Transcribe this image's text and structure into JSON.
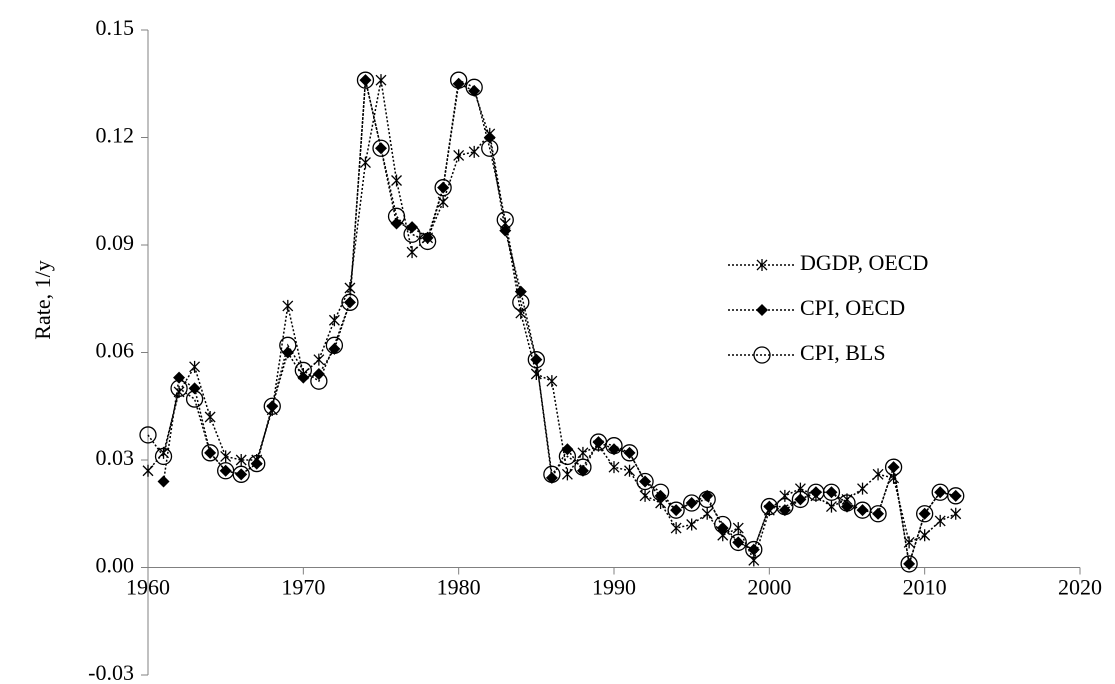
{
  "chart_data": {
    "type": "line",
    "y_label": "Rate, 1/y",
    "x": [
      1960,
      1961,
      1962,
      1963,
      1964,
      1965,
      1966,
      1967,
      1968,
      1969,
      1970,
      1971,
      1972,
      1973,
      1974,
      1975,
      1976,
      1977,
      1978,
      1979,
      1980,
      1981,
      1982,
      1983,
      1984,
      1985,
      1986,
      1987,
      1988,
      1989,
      1990,
      1991,
      1992,
      1993,
      1994,
      1995,
      1996,
      1997,
      1998,
      1999,
      2000,
      2001,
      2002,
      2003,
      2004,
      2005,
      2006,
      2007,
      2008,
      2009,
      2010,
      2011,
      2012
    ],
    "series": [
      {
        "name": "DGDP, OECD",
        "color": "#000000",
        "marker": "asterisk",
        "values": [
          0.027,
          0.032,
          0.049,
          0.056,
          0.042,
          0.031,
          0.03,
          0.03,
          0.044,
          0.073,
          0.054,
          0.058,
          0.069,
          0.078,
          0.113,
          0.136,
          0.108,
          0.088,
          0.092,
          0.102,
          0.115,
          0.116,
          0.121,
          0.096,
          0.071,
          0.054,
          0.052,
          0.026,
          0.032,
          0.034,
          0.028,
          0.027,
          0.02,
          0.018,
          0.011,
          0.012,
          0.015,
          0.009,
          0.011,
          0.002,
          0.016,
          0.02,
          0.022,
          0.02,
          0.017,
          0.019,
          0.022,
          0.026,
          0.025,
          0.007,
          0.009,
          0.013,
          0.015
        ]
      },
      {
        "name": "CPI, OECD",
        "color": "#000000",
        "marker": "diamond",
        "values": [
          null,
          0.024,
          0.053,
          0.05,
          0.032,
          0.027,
          0.026,
          0.029,
          0.045,
          0.06,
          0.053,
          0.054,
          0.061,
          0.074,
          0.136,
          0.117,
          0.096,
          0.095,
          0.092,
          0.106,
          0.135,
          0.133,
          0.12,
          0.094,
          0.077,
          0.058,
          0.025,
          0.033,
          0.027,
          0.035,
          0.033,
          0.032,
          0.024,
          0.02,
          0.016,
          0.018,
          0.02,
          0.011,
          0.007,
          0.005,
          0.017,
          0.016,
          0.019,
          0.021,
          0.021,
          0.017,
          0.016,
          0.015,
          0.028,
          0.001,
          0.015,
          0.021,
          0.02
        ]
      },
      {
        "name": "CPI, BLS",
        "color": "#000000",
        "marker": "circle",
        "values": [
          0.037,
          0.031,
          0.05,
          0.047,
          0.032,
          0.027,
          0.026,
          0.029,
          0.045,
          0.062,
          0.055,
          0.052,
          0.062,
          0.074,
          0.136,
          0.117,
          0.098,
          0.093,
          0.091,
          0.106,
          0.136,
          0.134,
          0.117,
          0.097,
          0.074,
          0.058,
          0.026,
          0.031,
          0.028,
          0.035,
          0.034,
          0.032,
          0.024,
          0.021,
          0.016,
          0.018,
          0.019,
          0.012,
          0.007,
          0.005,
          0.017,
          0.017,
          0.019,
          0.021,
          0.021,
          0.018,
          0.016,
          0.015,
          0.028,
          0.001,
          0.015,
          0.021,
          0.02
        ]
      }
    ],
    "xlim": [
      1960,
      2020
    ],
    "xticks": [
      1960,
      1970,
      1980,
      1990,
      2000,
      2010,
      2020
    ],
    "ylim": [
      -0.03,
      0.15
    ],
    "yticks": [
      -0.03,
      {
        "value": 0,
        "label": "0.00"
      },
      0.03,
      0.06,
      0.09,
      0.12,
      0.15
    ],
    "grid": false,
    "legend": "right"
  }
}
